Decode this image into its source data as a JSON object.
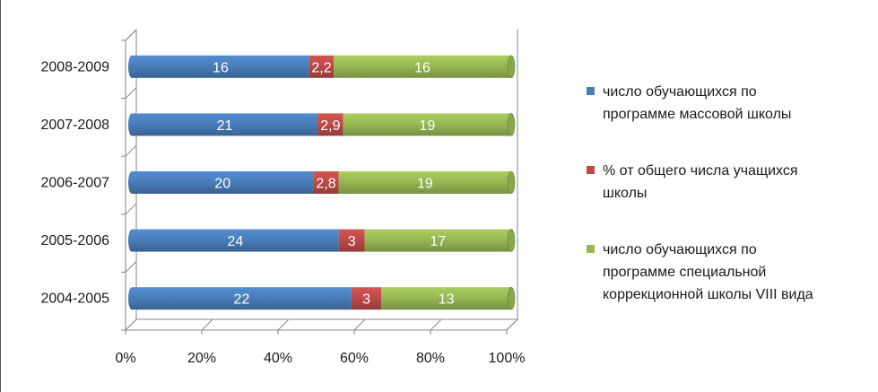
{
  "chart_data": {
    "type": "bar",
    "orientation": "horizontal",
    "stacked": "percent",
    "categories": [
      "2004-2005",
      "2005-2006",
      "2006-2007",
      "2007-2008",
      "2008-2009"
    ],
    "series": [
      {
        "name": "число обучающихся по программе массовой школы",
        "values": [
          22,
          24,
          20,
          21,
          16
        ],
        "labels": [
          "22",
          "24",
          "20",
          "21",
          "16"
        ],
        "color": "#4a7ebb"
      },
      {
        "name": "% от общего числа учащихся школы",
        "values": [
          3,
          3,
          2.8,
          2.9,
          2.2
        ],
        "labels": [
          "3",
          "3",
          "2,8",
          "2,9",
          "2,2"
        ],
        "color": "#be4b48"
      },
      {
        "name": "число обучающихся по программе специальной коррекционной  школы VIII вида",
        "values": [
          13,
          17,
          19,
          19,
          16
        ],
        "labels": [
          "13",
          "17",
          "19",
          "19",
          "16"
        ],
        "color": "#98b954"
      }
    ],
    "x_ticks": [
      "0%",
      "20%",
      "40%",
      "60%",
      "80%",
      "100%"
    ],
    "xlim": [
      0,
      100
    ],
    "legend_position": "right",
    "grid": false
  },
  "legend": {
    "items": [
      {
        "lines": [
          "число обучающихся по",
          "программе массовой школы"
        ],
        "color": "#4a7ebb"
      },
      {
        "lines": [
          "% от общего числа учащихся",
          "школы"
        ],
        "color": "#be4b48"
      },
      {
        "lines": [
          "число обучающихся по",
          "программе специальной",
          "коррекционной  школы VIII вида"
        ],
        "color": "#98b954"
      }
    ]
  }
}
